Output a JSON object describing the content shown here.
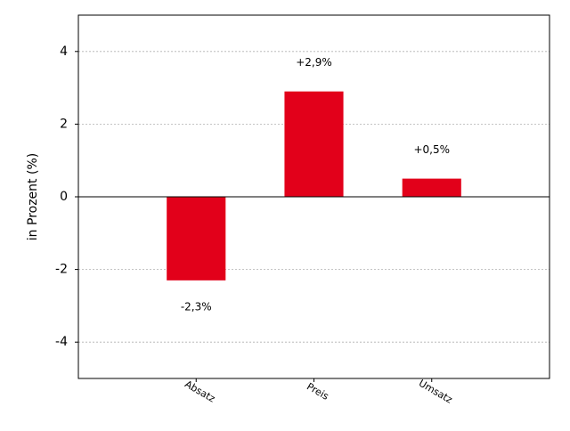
{
  "chart_data": {
    "type": "bar",
    "categories": [
      "Absatz",
      "Preis",
      "Umsatz"
    ],
    "values": [
      -2.3,
      2.9,
      0.5
    ],
    "value_labels": [
      "-2,3%",
      "+2,9%",
      "+0,5%"
    ],
    "color": "#e2001a",
    "y_label": "in Prozent (%)",
    "ylim": [
      -5,
      5
    ],
    "yticks": [
      -4,
      -2,
      0,
      2,
      4
    ],
    "grid": true
  }
}
